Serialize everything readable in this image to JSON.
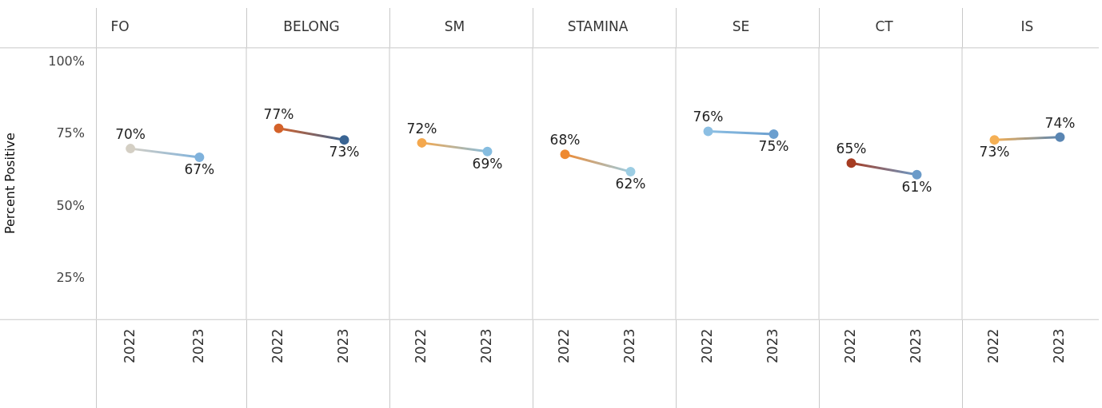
{
  "chart_data": [
    {
      "type": "line",
      "title": "FO",
      "ylabel": "Percent Positive",
      "categories": [
        "2022",
        "2023"
      ],
      "values": [
        70,
        67
      ],
      "colors": [
        "#d4cfc4",
        "#7fb2dc"
      ],
      "value_labels": [
        "70%",
        "67%"
      ],
      "ylim": [
        11,
        105
      ],
      "yticks": [
        {
          "value": 25,
          "label": "25%"
        },
        {
          "value": 50,
          "label": "50%"
        },
        {
          "value": 75,
          "label": "75%"
        },
        {
          "value": 100,
          "label": "100%"
        }
      ],
      "marker": "circle",
      "grid": false,
      "legend": false
    },
    {
      "type": "line",
      "title": "BELONG",
      "categories": [
        "2022",
        "2023"
      ],
      "values": [
        77,
        73
      ],
      "colors": [
        "#d4622a",
        "#3a6594"
      ],
      "value_labels": [
        "77%",
        "73%"
      ],
      "ylim": [
        11,
        105
      ],
      "tick_labels": "x",
      "marker": "circle",
      "grid": false,
      "legend": false
    },
    {
      "type": "line",
      "title": "SM",
      "categories": [
        "2022",
        "2023"
      ],
      "values": [
        72,
        69
      ],
      "colors": [
        "#f4a84e",
        "#86bde0"
      ],
      "value_labels": [
        "72%",
        "69%"
      ],
      "ylim": [
        11,
        105
      ],
      "tick_labels": "x",
      "marker": "circle",
      "grid": false,
      "legend": false
    },
    {
      "type": "line",
      "title": "STAMINA",
      "categories": [
        "2022",
        "2023"
      ],
      "values": [
        68,
        62
      ],
      "colors": [
        "#ee8a32",
        "#9ccde3"
      ],
      "value_labels": [
        "68%",
        "62%"
      ],
      "ylim": [
        11,
        105
      ],
      "tick_labels": "x",
      "marker": "circle",
      "grid": false,
      "legend": false
    },
    {
      "type": "line",
      "title": "SE",
      "categories": [
        "2022",
        "2023"
      ],
      "values": [
        76,
        75
      ],
      "colors": [
        "#8cbfe3",
        "#6b9fcf"
      ],
      "value_labels": [
        "76%",
        "75%"
      ],
      "ylim": [
        11,
        105
      ],
      "tick_labels": "x",
      "marker": "circle",
      "grid": false,
      "legend": false
    },
    {
      "type": "line",
      "title": "CT",
      "categories": [
        "2022",
        "2023"
      ],
      "values": [
        65,
        61
      ],
      "colors": [
        "#a63c22",
        "#6b9bc9"
      ],
      "value_labels": [
        "65%",
        "61%"
      ],
      "ylim": [
        11,
        105
      ],
      "tick_labels": "x",
      "marker": "circle",
      "grid": false,
      "legend": false
    },
    {
      "type": "line",
      "title": "IS",
      "categories": [
        "2022",
        "2023"
      ],
      "values": [
        73,
        74
      ],
      "colors": [
        "#f5b055",
        "#5a86b3"
      ],
      "value_labels": [
        "73%",
        "74%"
      ],
      "ylim": [
        11,
        105
      ],
      "tick_labels": "x",
      "marker": "circle",
      "grid": false,
      "legend": false
    }
  ]
}
